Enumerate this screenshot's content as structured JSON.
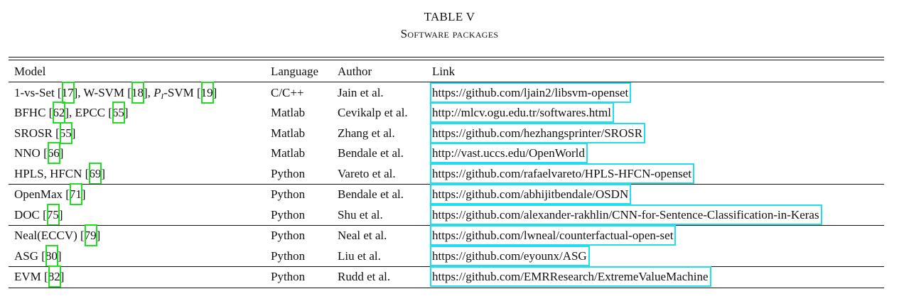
{
  "caption": {
    "number": "TABLE V",
    "title": "Software packages"
  },
  "header": {
    "model": "Model",
    "language": "Language",
    "author": "Author",
    "link": "Link"
  },
  "rows": [
    {
      "model_parts": [
        "1-vs-Set [",
        "17",
        "], W-SVM [",
        "18",
        "], ",
        "P",
        "I",
        "-SVM [",
        "19",
        "]"
      ],
      "language": "C/C++",
      "author": "Jain et al.",
      "link": "https://github.com/ljain2/libsvm-openset"
    },
    {
      "model_parts": [
        "BFHC [",
        "62",
        "], EPCC [",
        "65",
        "]"
      ],
      "language": "Matlab",
      "author": "Cevikalp et al.",
      "link": "http://mlcv.ogu.edu.tr/softwares.html"
    },
    {
      "model_parts": [
        "SROSR [",
        "55",
        "]"
      ],
      "language": "Matlab",
      "author": "Zhang et al.",
      "link": "https://github.com/hezhangsprinter/SROSR"
    },
    {
      "model_parts": [
        "NNO [",
        "66",
        "]"
      ],
      "language": "Matlab",
      "author": "Bendale et al.",
      "link": "http://vast.uccs.edu/OpenWorld"
    },
    {
      "model_parts": [
        "HPLS, HFCN [",
        "69",
        "]"
      ],
      "language": "Python",
      "author": "Vareto et al.",
      "link": "https://github.com/rafaelvareto/HPLS-HFCN-openset"
    },
    {
      "model_parts": [
        "OpenMax [",
        "71",
        "]"
      ],
      "language": "Python",
      "author": "Bendale et al.",
      "link": "https://github.com/abhijitbendale/OSDN"
    },
    {
      "model_parts": [
        "DOC [",
        "75",
        "]"
      ],
      "language": "Python",
      "author": "Shu et al.",
      "link": "https://github.com/alexander-rakhlin/CNN-for-Sentence-Classification-in-Keras"
    },
    {
      "model_parts": [
        "Neal(ECCV) [",
        "79",
        "]"
      ],
      "language": "Python",
      "author": "Neal et al.",
      "link": "https://github.com/lwneal/counterfactual-open-set"
    },
    {
      "model_parts": [
        "ASG [",
        "80",
        "]"
      ],
      "language": "Python",
      "author": "Liu et al.",
      "link": "https://github.com/eyounx/ASG"
    },
    {
      "model_parts": [
        "EVM [",
        "82",
        "]"
      ],
      "language": "Python",
      "author": "Rudd et al.",
      "link": "https://github.com/EMRResearch/ExtremeValueMachine"
    }
  ],
  "colors": {
    "citation_box": "#22dd22",
    "link_box": "#22ddee"
  }
}
